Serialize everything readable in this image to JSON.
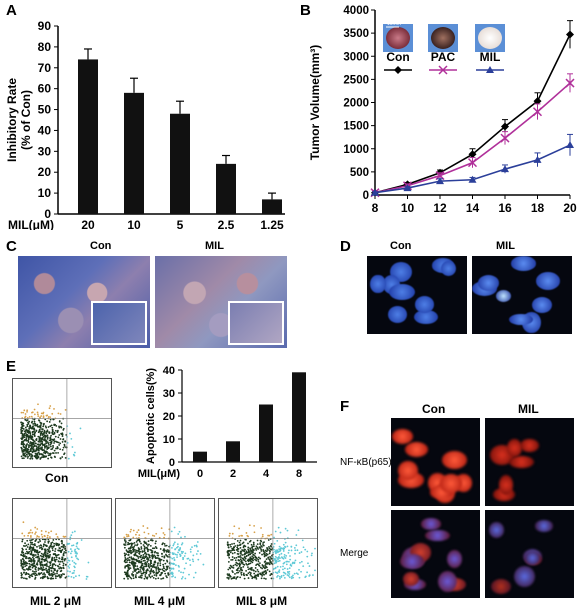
{
  "panels": {
    "a": {
      "letter": "A"
    },
    "b": {
      "letter": "B"
    },
    "c": {
      "letter": "C",
      "con": "Con",
      "mil": "MIL"
    },
    "d": {
      "letter": "D",
      "con": "Con",
      "mil": "MIL"
    },
    "e": {
      "letter": "E",
      "flow_titles": [
        "Con",
        "MIL 2 μM",
        "MIL 4 μM",
        "MIL 8 μM"
      ]
    },
    "f": {
      "letter": "F",
      "con": "Con",
      "mil": "MIL",
      "row1": "NF-κB(p65)",
      "row2": "Merge"
    }
  },
  "chart_data": [
    {
      "id": "A",
      "type": "bar",
      "ylabel": "Inhibitory Rate\n(% of Con)",
      "xlabel": "MIL(μM)",
      "categories": [
        "20",
        "10",
        "5",
        "2.5",
        "1.25"
      ],
      "values": [
        74,
        58,
        48,
        24,
        7
      ],
      "errors": [
        5,
        7,
        6,
        4,
        3
      ],
      "ylim": [
        0,
        90
      ],
      "yticks": [
        0,
        10,
        20,
        30,
        40,
        50,
        60,
        70,
        80,
        90
      ],
      "bar_color": "#111111"
    },
    {
      "id": "B",
      "type": "line",
      "ylabel": "Tumor Volume(mm³)",
      "x": [
        8,
        10,
        12,
        14,
        16,
        18,
        20
      ],
      "xlim": [
        8,
        20
      ],
      "ylim": [
        0,
        4000
      ],
      "yticks": [
        0,
        500,
        1000,
        1500,
        2000,
        2500,
        3000,
        3500,
        4000
      ],
      "scale_label": "10mm",
      "series": [
        {
          "name": "Con",
          "marker": "diamond",
          "color": "#000000",
          "values": [
            50,
            230,
            480,
            880,
            1480,
            2030,
            3470
          ],
          "errors": [
            20,
            40,
            60,
            120,
            150,
            180,
            300
          ]
        },
        {
          "name": "PAC",
          "marker": "x",
          "color": "#b0309a",
          "values": [
            50,
            200,
            420,
            700,
            1230,
            1800,
            2420
          ],
          "errors": [
            20,
            40,
            60,
            110,
            140,
            170,
            200
          ]
        },
        {
          "name": "MIL",
          "marker": "triangle",
          "color": "#2b3f9a",
          "values": [
            50,
            150,
            300,
            330,
            560,
            760,
            1080
          ],
          "errors": [
            20,
            30,
            50,
            50,
            90,
            150,
            230
          ]
        }
      ]
    },
    {
      "id": "E",
      "type": "bar",
      "ylabel": "Apoptotic cells(%)",
      "xlabel": "MIL(μM)",
      "categories": [
        "0",
        "2",
        "4",
        "8"
      ],
      "values": [
        4.5,
        9,
        25,
        39
      ],
      "ylim": [
        0,
        40
      ],
      "yticks": [
        0,
        10,
        20,
        30,
        40
      ],
      "bar_color": "#111111"
    }
  ]
}
